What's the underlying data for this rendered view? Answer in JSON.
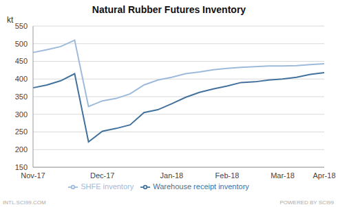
{
  "chart_data": {
    "type": "line",
    "title": "Natural Rubber Futures Inventory",
    "y_label": "kt",
    "footer_left": "INTL.SCI99.COM",
    "footer_right": "POWERED BY SCI99",
    "categories": [
      "Nov-17",
      null,
      null,
      null,
      null,
      "Dec-17",
      null,
      null,
      null,
      null,
      "Jan-18",
      null,
      null,
      null,
      "Feb-18",
      null,
      null,
      null,
      "Mar-18",
      null,
      null,
      "Apr-18"
    ],
    "series": [
      {
        "name": "Warehouse receipt inventory",
        "color": "#41719c",
        "values": [
          375,
          383,
          395,
          415,
          222,
          252,
          260,
          270,
          305,
          313,
          330,
          348,
          362,
          372,
          380,
          390,
          392,
          397,
          400,
          405,
          413,
          418
        ]
      },
      {
        "name": "SHFE inventory",
        "color": "#9dbadb",
        "values": [
          475,
          483,
          492,
          510,
          322,
          338,
          345,
          358,
          383,
          397,
          405,
          415,
          420,
          426,
          430,
          433,
          435,
          437,
          437,
          438,
          441,
          443
        ]
      }
    ],
    "ylim": [
      150,
      550
    ],
    "yticks": [
      150,
      200,
      250,
      300,
      350,
      400,
      450,
      500,
      550
    ],
    "grid": true,
    "legend": "bottom"
  }
}
